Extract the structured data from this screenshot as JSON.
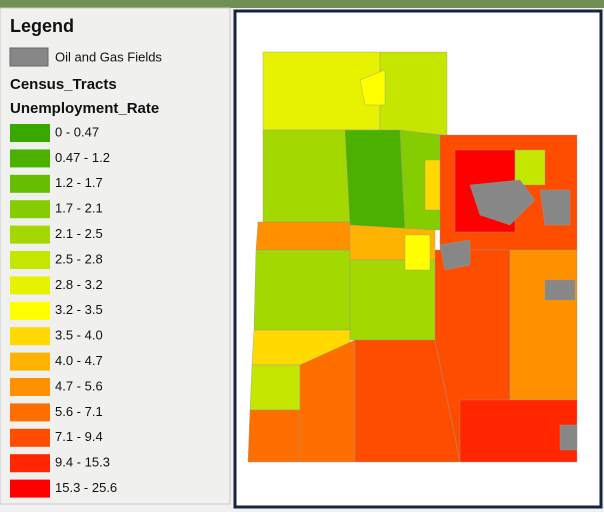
{
  "legend": {
    "title": "Legend",
    "oil_gas": {
      "label": "Oil and Gas Fields",
      "color": "#878787"
    },
    "layer": "Census_Tracts",
    "field": "Unemployment_Rate",
    "classes": [
      {
        "label": "0 - 0.47",
        "color": "#38a800"
      },
      {
        "label": "0.47 - 1.2",
        "color": "#4cb000"
      },
      {
        "label": "1.2 - 1.7",
        "color": "#66be00"
      },
      {
        "label": "1.7 - 2.1",
        "color": "#85cc00"
      },
      {
        "label": "2.1 - 2.5",
        "color": "#a3d900"
      },
      {
        "label": "2.5 - 2.8",
        "color": "#c4e600"
      },
      {
        "label": "2.8 - 3.2",
        "color": "#e6f200"
      },
      {
        "label": "3.2 - 3.5",
        "color": "#ffff00"
      },
      {
        "label": "3.5 - 4.0",
        "color": "#ffd900"
      },
      {
        "label": "4.0 - 4.7",
        "color": "#ffb300"
      },
      {
        "label": "4.7 - 5.6",
        "color": "#ff9100"
      },
      {
        "label": "5.6 - 7.1",
        "color": "#ff6f00"
      },
      {
        "label": "7.1 - 9.4",
        "color": "#ff4d00"
      },
      {
        "label": "9.4 - 15.3",
        "color": "#ff2600"
      },
      {
        "label": "15.3 - 25.6",
        "color": "#ff0000"
      }
    ]
  }
}
